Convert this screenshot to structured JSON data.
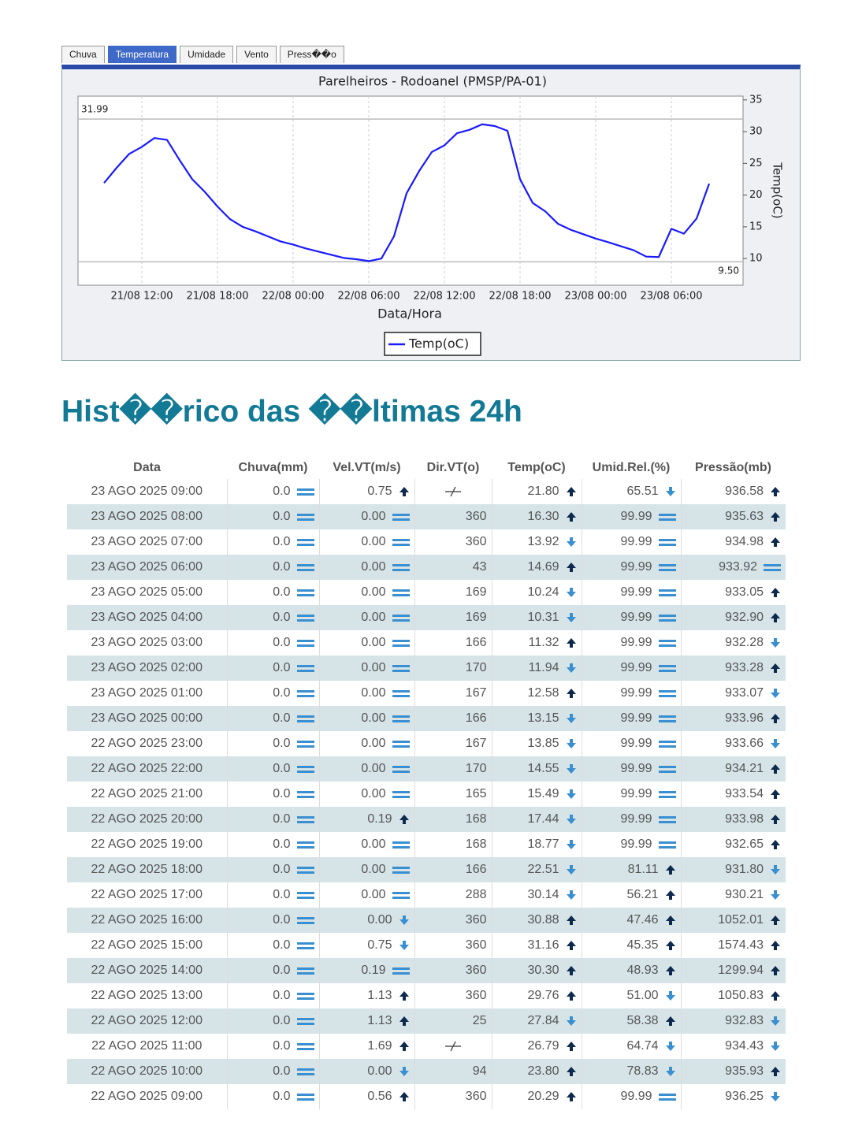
{
  "tabs": [
    "Chuva",
    "Temperatura",
    "Umidade",
    "Vento",
    "Press��o"
  ],
  "active_tab": 1,
  "chart_data": {
    "type": "line",
    "title": "Parelheiros - Rodoanel (PMSP/PA-01)",
    "x_label": "Data/Hora",
    "y_label": "Temp(oC)",
    "x": [
      "21/08 09:00",
      "21/08 10:00",
      "21/08 11:00",
      "21/08 12:00",
      "21/08 13:00",
      "21/08 14:00",
      "21/08 15:00",
      "21/08 16:00",
      "21/08 17:00",
      "21/08 18:00",
      "21/08 19:00",
      "21/08 20:00",
      "21/08 21:00",
      "21/08 22:00",
      "21/08 23:00",
      "22/08 00:00",
      "22/08 01:00",
      "22/08 02:00",
      "22/08 03:00",
      "22/08 04:00",
      "22/08 05:00",
      "22/08 06:00",
      "22/08 07:00",
      "22/08 08:00",
      "22/08 09:00",
      "22/08 10:00",
      "22/08 11:00",
      "22/08 12:00",
      "22/08 13:00",
      "22/08 14:00",
      "22/08 15:00",
      "22/08 16:00",
      "22/08 17:00",
      "22/08 18:00",
      "22/08 19:00",
      "22/08 20:00",
      "22/08 21:00",
      "22/08 22:00",
      "22/08 23:00",
      "23/08 00:00",
      "23/08 01:00",
      "23/08 02:00",
      "23/08 03:00",
      "23/08 04:00",
      "23/08 05:00",
      "23/08 06:00",
      "23/08 07:00",
      "23/08 08:00",
      "23/08 09:00"
    ],
    "xticks": [
      "21/08 12:00",
      "21/08 18:00",
      "22/08 00:00",
      "22/08 06:00",
      "22/08 12:00",
      "22/08 18:00",
      "23/08 00:00",
      "23/08 06:00"
    ],
    "series": [
      {
        "name": "Temp(oC)",
        "color": "#1a1aff",
        "values": [
          21.9,
          24.3,
          26.5,
          27.6,
          29.0,
          28.7,
          25.5,
          22.5,
          20.5,
          18.2,
          16.2,
          15.0,
          14.3,
          13.5,
          12.7,
          12.2,
          11.6,
          11.1,
          10.6,
          10.1,
          9.9,
          9.6,
          10.0,
          13.5,
          20.29,
          23.8,
          26.79,
          27.84,
          29.76,
          30.3,
          31.16,
          30.88,
          30.14,
          22.51,
          18.77,
          17.44,
          15.49,
          14.55,
          13.85,
          13.15,
          12.58,
          11.94,
          11.32,
          10.31,
          10.24,
          14.69,
          13.92,
          16.3,
          21.8
        ]
      }
    ],
    "ylim": [
      5.8,
      35.6
    ],
    "yticks": [
      10,
      15,
      20,
      25,
      30,
      35
    ],
    "reference_lines": [
      31.99,
      {
        "value": 9.5,
        "label": "9.50"
      }
    ],
    "grid": true
  },
  "heading": "Hist��rico das ��ltimas 24h",
  "table": {
    "header": [
      "Data",
      "Chuva(mm)",
      "Vel.VT(m/s)",
      "Dir.VT(o)",
      "Temp(oC)",
      "Umid.Rel.(%)",
      "Pressão(mb)"
    ],
    "rows": [
      [
        "23 AGO 2025 09:00",
        "0.0",
        "0.75",
        null,
        "21.80",
        "65.51",
        "936.58"
      ],
      [
        "23 AGO 2025 08:00",
        "0.0",
        "0.00",
        "360",
        "16.30",
        "99.99",
        "935.63"
      ],
      [
        "23 AGO 2025 07:00",
        "0.0",
        "0.00",
        "360",
        "13.92",
        "99.99",
        "934.98"
      ],
      [
        "23 AGO 2025 06:00",
        "0.0",
        "0.00",
        "43",
        "14.69",
        "99.99",
        "933.92"
      ],
      [
        "23 AGO 2025 05:00",
        "0.0",
        "0.00",
        "169",
        "10.24",
        "99.99",
        "933.05"
      ],
      [
        "23 AGO 2025 04:00",
        "0.0",
        "0.00",
        "169",
        "10.31",
        "99.99",
        "932.90"
      ],
      [
        "23 AGO 2025 03:00",
        "0.0",
        "0.00",
        "166",
        "11.32",
        "99.99",
        "932.28"
      ],
      [
        "23 AGO 2025 02:00",
        "0.0",
        "0.00",
        "170",
        "11.94",
        "99.99",
        "933.28"
      ],
      [
        "23 AGO 2025 01:00",
        "0.0",
        "0.00",
        "167",
        "12.58",
        "99.99",
        "933.07"
      ],
      [
        "23 AGO 2025 00:00",
        "0.0",
        "0.00",
        "166",
        "13.15",
        "99.99",
        "933.96"
      ],
      [
        "22 AGO 2025 23:00",
        "0.0",
        "0.00",
        "167",
        "13.85",
        "99.99",
        "933.66"
      ],
      [
        "22 AGO 2025 22:00",
        "0.0",
        "0.00",
        "170",
        "14.55",
        "99.99",
        "934.21"
      ],
      [
        "22 AGO 2025 21:00",
        "0.0",
        "0.00",
        "165",
        "15.49",
        "99.99",
        "933.54"
      ],
      [
        "22 AGO 2025 20:00",
        "0.0",
        "0.19",
        "168",
        "17.44",
        "99.99",
        "933.98"
      ],
      [
        "22 AGO 2025 19:00",
        "0.0",
        "0.00",
        "168",
        "18.77",
        "99.99",
        "932.65"
      ],
      [
        "22 AGO 2025 18:00",
        "0.0",
        "0.00",
        "166",
        "22.51",
        "81.11",
        "931.80"
      ],
      [
        "22 AGO 2025 17:00",
        "0.0",
        "0.00",
        "288",
        "30.14",
        "56.21",
        "930.21"
      ],
      [
        "22 AGO 2025 16:00",
        "0.0",
        "0.00",
        "360",
        "30.88",
        "47.46",
        "1052.01"
      ],
      [
        "22 AGO 2025 15:00",
        "0.0",
        "0.75",
        "360",
        "31.16",
        "45.35",
        "1574.43"
      ],
      [
        "22 AGO 2025 14:00",
        "0.0",
        "0.19",
        "360",
        "30.30",
        "48.93",
        "1299.94"
      ],
      [
        "22 AGO 2025 13:00",
        "0.0",
        "1.13",
        "360",
        "29.76",
        "51.00",
        "1050.83"
      ],
      [
        "22 AGO 2025 12:00",
        "0.0",
        "1.13",
        "25",
        "27.84",
        "58.38",
        "932.83"
      ],
      [
        "22 AGO 2025 11:00",
        "0.0",
        "1.69",
        null,
        "26.79",
        "64.74",
        "934.43"
      ],
      [
        "22 AGO 2025 10:00",
        "0.0",
        "0.00",
        "94",
        "23.80",
        "78.83",
        "935.93"
      ],
      [
        "22 AGO 2025 09:00",
        "0.0",
        "0.56",
        "360",
        "20.29",
        "99.99",
        "936.25"
      ]
    ],
    "trends": [
      [
        null,
        "eq",
        "up",
        null,
        "up",
        "down",
        "up"
      ],
      [
        null,
        "eq",
        "eq",
        null,
        "up",
        "eq",
        "up"
      ],
      [
        null,
        "eq",
        "eq",
        null,
        "down",
        "eq",
        "up"
      ],
      [
        null,
        "eq",
        "eq",
        null,
        "up",
        "eq",
        "eq"
      ],
      [
        null,
        "eq",
        "eq",
        null,
        "down",
        "eq",
        "up"
      ],
      [
        null,
        "eq",
        "eq",
        null,
        "down",
        "eq",
        "up"
      ],
      [
        null,
        "eq",
        "eq",
        null,
        "up",
        "eq",
        "down"
      ],
      [
        null,
        "eq",
        "eq",
        null,
        "down",
        "eq",
        "up"
      ],
      [
        null,
        "eq",
        "eq",
        null,
        "up",
        "eq",
        "down"
      ],
      [
        null,
        "eq",
        "eq",
        null,
        "down",
        "eq",
        "up"
      ],
      [
        null,
        "eq",
        "eq",
        null,
        "down",
        "eq",
        "down"
      ],
      [
        null,
        "eq",
        "eq",
        null,
        "down",
        "eq",
        "up"
      ],
      [
        null,
        "eq",
        "eq",
        null,
        "down",
        "eq",
        "up"
      ],
      [
        null,
        "eq",
        "up",
        null,
        "down",
        "eq",
        "up"
      ],
      [
        null,
        "eq",
        "eq",
        null,
        "down",
        "eq",
        "up"
      ],
      [
        null,
        "eq",
        "eq",
        null,
        "down",
        "up",
        "down"
      ],
      [
        null,
        "eq",
        "eq",
        null,
        "down",
        "up",
        "down"
      ],
      [
        null,
        "eq",
        "down",
        null,
        "up",
        "up",
        "up"
      ],
      [
        null,
        "eq",
        "down",
        null,
        "up",
        "up",
        "up"
      ],
      [
        null,
        "eq",
        "eq",
        null,
        "up",
        "up",
        "up"
      ],
      [
        null,
        "eq",
        "up",
        null,
        "up",
        "down",
        "up"
      ],
      [
        null,
        "eq",
        "up",
        null,
        "down",
        "up",
        "down"
      ],
      [
        null,
        "eq",
        "up",
        null,
        "up",
        "down",
        "down"
      ],
      [
        null,
        "eq",
        "down",
        null,
        "up",
        "down",
        "up"
      ],
      [
        null,
        "eq",
        "up",
        null,
        "up",
        "eq",
        "down"
      ]
    ]
  }
}
